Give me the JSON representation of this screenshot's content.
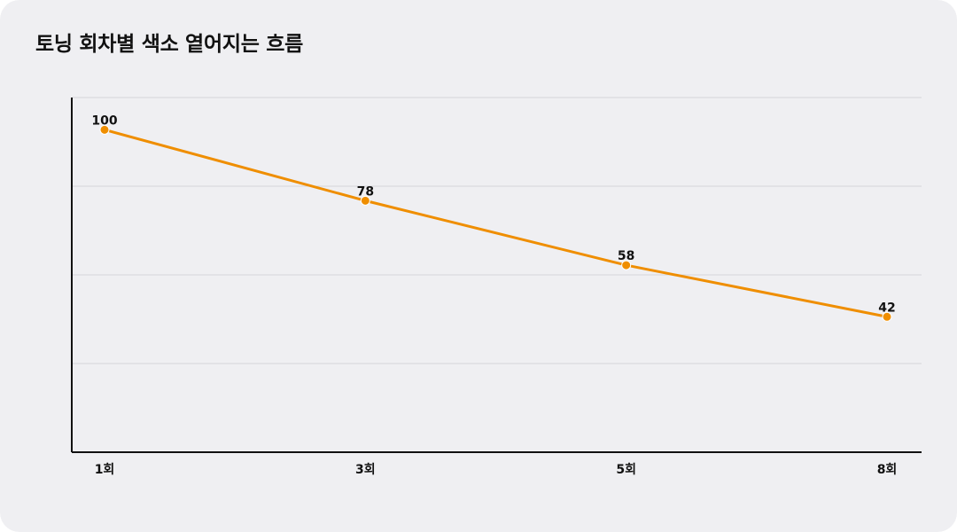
{
  "chart_data": {
    "type": "line",
    "title": "토닝 회차별 색소 옅어지는 흐름",
    "categories": [
      "1회",
      "3회",
      "5회",
      "8회"
    ],
    "series": [
      {
        "values": [
          100,
          78,
          58,
          42
        ]
      }
    ],
    "ylim": [
      0,
      110
    ],
    "xlabel": "",
    "ylabel": "",
    "grid": true,
    "colors": {
      "line": "#ef8e00",
      "background": "#efeff2",
      "grid": "#d6d6db",
      "axis": "#111111"
    }
  }
}
